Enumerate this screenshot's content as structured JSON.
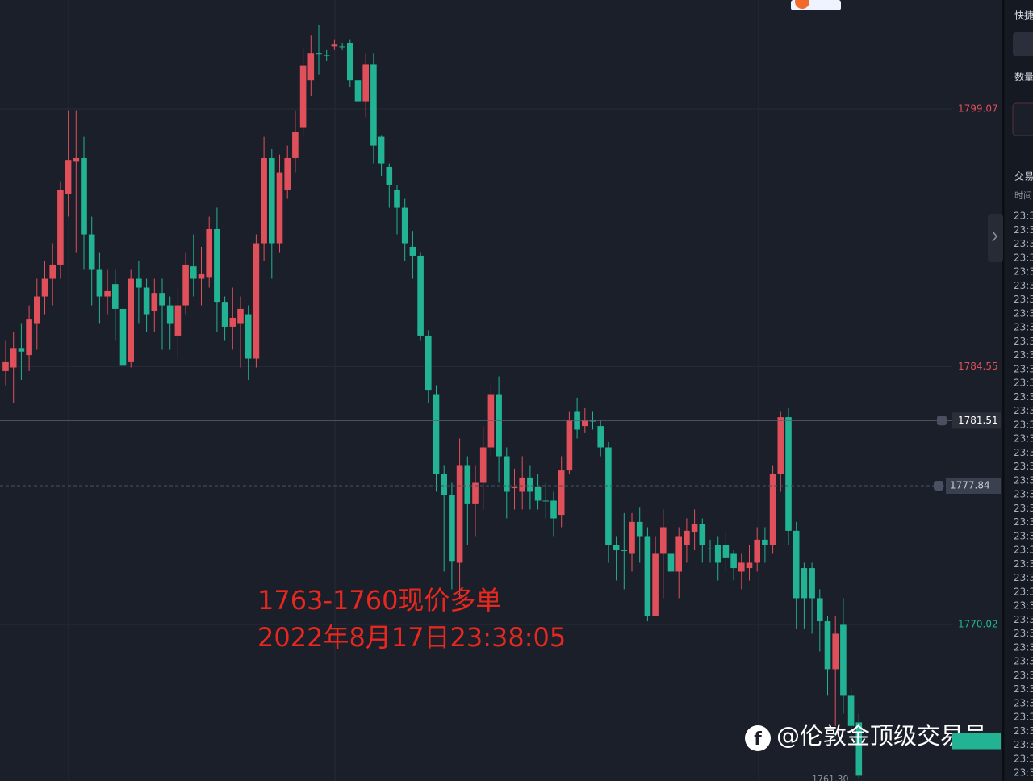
{
  "chart_data": {
    "type": "candlestick",
    "up_color": "#e0505a",
    "down_color": "#22b394",
    "ylim": [
      1761.2,
      1805.21
    ],
    "yticks": [
      1799.07,
      1784.55,
      1770.02
    ],
    "grid": true,
    "current_price": 1781.51,
    "alert_price": 1777.84,
    "last_price": 1763.45,
    "low_label": {
      "value": 1761.3,
      "label": "1761.30"
    },
    "annotations": [
      "1763-1760现价多单",
      "2022年8月17日23:38:05"
    ],
    "watermark": "@伦敦金顶级交易员",
    "ohlc": [
      [
        1784.3,
        1786,
        1783.5,
        1784.8
      ],
      [
        1784.5,
        1786.5,
        1782.5,
        1785.6
      ],
      [
        1785.6,
        1787,
        1783.8,
        1785.4
      ],
      [
        1785.2,
        1788,
        1784.3,
        1787.2
      ],
      [
        1787,
        1789.5,
        1785.5,
        1788.5
      ],
      [
        1788.5,
        1790.5,
        1787.5,
        1789.5
      ],
      [
        1789.5,
        1791.5,
        1788,
        1790.3
      ],
      [
        1790.3,
        1795,
        1789.5,
        1794.5
      ],
      [
        1794.3,
        1799,
        1793,
        1796.2
      ],
      [
        1796.1,
        1799,
        1791,
        1796.3
      ],
      [
        1796.3,
        1797.5,
        1790,
        1792
      ],
      [
        1792,
        1793,
        1788,
        1790
      ],
      [
        1790,
        1791,
        1787,
        1788.5
      ],
      [
        1788.5,
        1790,
        1787.5,
        1788.8
      ],
      [
        1789.2,
        1790,
        1786,
        1787.8
      ],
      [
        1787.8,
        1788,
        1783.2,
        1784.6
      ],
      [
        1784.8,
        1790,
        1784.5,
        1789.5
      ],
      [
        1789.5,
        1790.5,
        1787,
        1789
      ],
      [
        1789,
        1789.5,
        1786.5,
        1787.5
      ],
      [
        1787.7,
        1789.5,
        1786.5,
        1788.7
      ],
      [
        1788.7,
        1789.5,
        1785.5,
        1788
      ],
      [
        1788,
        1788.5,
        1785.5,
        1787
      ],
      [
        1786.3,
        1789,
        1785,
        1788
      ],
      [
        1788,
        1791,
        1787.5,
        1790.3
      ],
      [
        1790.2,
        1792,
        1788.5,
        1789.5
      ],
      [
        1789.5,
        1791.3,
        1788,
        1789.8
      ],
      [
        1789.6,
        1793,
        1789,
        1792.3
      ],
      [
        1792.3,
        1793.5,
        1786.5,
        1788.2
      ],
      [
        1788.2,
        1788.5,
        1786,
        1786.8
      ],
      [
        1786.8,
        1789,
        1785.5,
        1787.3
      ],
      [
        1787,
        1788.5,
        1784.5,
        1787.8
      ],
      [
        1787.5,
        1788,
        1783.8,
        1785
      ],
      [
        1785,
        1792,
        1784.5,
        1791.5
      ],
      [
        1791.5,
        1797.5,
        1790.5,
        1796.3
      ],
      [
        1796.3,
        1796.8,
        1789.5,
        1791.5
      ],
      [
        1791.5,
        1796.5,
        1791,
        1795.5
      ],
      [
        1794.5,
        1797,
        1794,
        1796.3
      ],
      [
        1796.3,
        1799,
        1795.5,
        1797.8
      ],
      [
        1798,
        1802.5,
        1797.5,
        1801.5
      ],
      [
        1800.7,
        1803.2,
        1799.8,
        1802.2
      ],
      [
        1802.2,
        1803.8,
        1801,
        1802.2
      ],
      [
        1802.1,
        1802.4,
        1801.8,
        1802.1
      ],
      [
        1802.6,
        1803,
        1802.4,
        1802.7
      ],
      [
        1802.6,
        1802.8,
        1802.4,
        1802.6
      ],
      [
        1802.8,
        1803,
        1800.3,
        1800.7
      ],
      [
        1800.7,
        1800.9,
        1798.5,
        1799.5
      ],
      [
        1799.5,
        1802.2,
        1798.6,
        1801.6
      ],
      [
        1801.6,
        1802.2,
        1796,
        1797
      ],
      [
        1797.5,
        1797.6,
        1795.3,
        1796
      ],
      [
        1795.8,
        1796,
        1793.5,
        1794.8
      ],
      [
        1794.5,
        1794.8,
        1792,
        1793.5
      ],
      [
        1793.5,
        1794,
        1790.5,
        1791.5
      ],
      [
        1791.3,
        1792.2,
        1789.5,
        1790.8
      ],
      [
        1790.8,
        1791,
        1786,
        1786.3
      ],
      [
        1786.3,
        1786.6,
        1782.5,
        1783.2
      ],
      [
        1783,
        1783.5,
        1777.5,
        1778.5
      ],
      [
        1778.5,
        1779,
        1773,
        1777.3
      ],
      [
        1777.3,
        1778,
        1772,
        1773.6
      ],
      [
        1773.5,
        1780.5,
        1771.5,
        1779
      ],
      [
        1779,
        1779.5,
        1774.5,
        1776.8
      ],
      [
        1776.8,
        1779,
        1775,
        1778
      ],
      [
        1778,
        1781.2,
        1776.5,
        1780
      ],
      [
        1780,
        1783.5,
        1779.5,
        1783
      ],
      [
        1783,
        1784,
        1778,
        1779.5
      ],
      [
        1779.5,
        1780,
        1776,
        1777.5
      ],
      [
        1777.7,
        1778.8,
        1776.5,
        1777.8
      ],
      [
        1777.5,
        1779.5,
        1776.5,
        1778.3
      ],
      [
        1778.3,
        1779,
        1776.5,
        1777.5
      ],
      [
        1777.8,
        1778.5,
        1776.5,
        1777
      ],
      [
        1777,
        1778,
        1776,
        1777
      ],
      [
        1777,
        1777.5,
        1775,
        1776
      ],
      [
        1776.2,
        1779.5,
        1775.5,
        1778.7
      ],
      [
        1778.7,
        1782,
        1778.5,
        1781.5
      ],
      [
        1782,
        1782.8,
        1780.5,
        1781
      ],
      [
        1781.2,
        1782.2,
        1780.8,
        1781.5
      ],
      [
        1781.5,
        1782,
        1781,
        1781.5
      ],
      [
        1781.2,
        1781.5,
        1779.5,
        1780
      ],
      [
        1780,
        1780.3,
        1773.5,
        1774.5
      ],
      [
        1774.5,
        1775,
        1772.5,
        1774.2
      ],
      [
        1774.2,
        1776.3,
        1772,
        1774.2
      ],
      [
        1774,
        1776.3,
        1773,
        1775.8
      ],
      [
        1775.8,
        1776.6,
        1773.5,
        1775
      ],
      [
        1775,
        1775.5,
        1770.2,
        1770.5
      ],
      [
        1770.5,
        1775,
        1770.5,
        1774
      ],
      [
        1774,
        1776.5,
        1771.5,
        1775.5
      ],
      [
        1774,
        1775,
        1772.5,
        1773
      ],
      [
        1773,
        1775.5,
        1771.5,
        1775
      ],
      [
        1774.5,
        1776,
        1773.5,
        1775.3
      ],
      [
        1775.2,
        1776.5,
        1774.2,
        1775.7
      ],
      [
        1775.7,
        1776,
        1773.5,
        1774.5
      ],
      [
        1774.3,
        1774.8,
        1773.5,
        1774.3
      ],
      [
        1774.5,
        1775,
        1772.5,
        1773.5
      ],
      [
        1774.5,
        1775.2,
        1773,
        1773.8
      ],
      [
        1774,
        1774.2,
        1772.5,
        1773.2
      ],
      [
        1773,
        1774,
        1772,
        1773.5
      ],
      [
        1773.2,
        1774.5,
        1772.5,
        1773.5
      ],
      [
        1773.5,
        1775.5,
        1773,
        1774.8
      ],
      [
        1774.8,
        1775.5,
        1773.5,
        1774.5
      ],
      [
        1774.5,
        1779,
        1774,
        1778.5
      ],
      [
        1778.5,
        1782,
        1777.5,
        1781.7
      ],
      [
        1781.7,
        1782.2,
        1774.5,
        1775.3
      ],
      [
        1775.3,
        1775.8,
        1769.8,
        1771.5
      ],
      [
        1773.2,
        1773.5,
        1769.8,
        1771.5
      ],
      [
        1773.2,
        1773.5,
        1769.5,
        1771.5
      ],
      [
        1771.5,
        1772,
        1768.5,
        1770.2
      ],
      [
        1770.2,
        1770.5,
        1766,
        1767.5
      ],
      [
        1767.5,
        1770.5,
        1764.3,
        1769.5
      ],
      [
        1770,
        1771.5,
        1765,
        1766
      ],
      [
        1766,
        1766.5,
        1763.5,
        1764.3
      ],
      [
        1764.5,
        1765,
        1761.3,
        1761.5
      ]
    ]
  },
  "side_panel": {
    "labels": [
      "快捷",
      "数量",
      "交易",
      "时间"
    ],
    "times": [
      "23:3",
      "23:3",
      "23:3",
      "23:3",
      "23:3",
      "23:3",
      "23:3",
      "23:3",
      "23:3",
      "23:3",
      "23:3",
      "23:3",
      "23:3",
      "23:3",
      "23:3",
      "23:3",
      "23:3",
      "23:3",
      "23:3",
      "23:3",
      "23:3",
      "23:3",
      "23:3",
      "23:3",
      "23:3",
      "23:3",
      "23:3",
      "23:3",
      "23:3",
      "23:3",
      "23:3",
      "23:3",
      "23:3",
      "23:3",
      "23:3",
      "23:3",
      "23:3",
      "23:3",
      "23:3",
      "23:3",
      "23:3"
    ]
  }
}
